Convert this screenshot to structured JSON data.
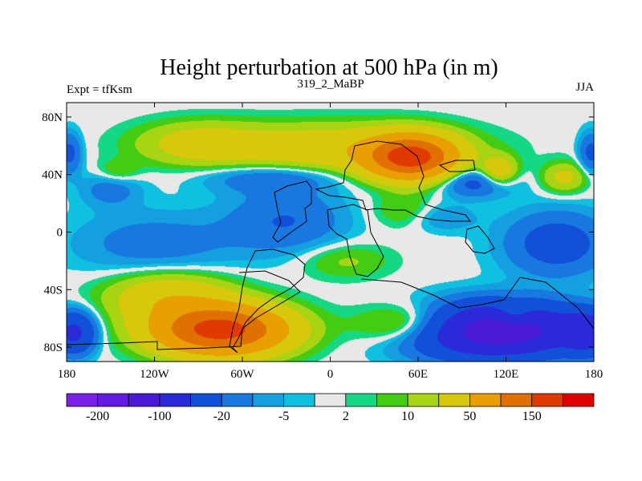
{
  "chart_data": {
    "type": "heatmap",
    "title": "Height perturbation at 500 hPa (in m)",
    "subtitle_left": "Expt = tfKsm",
    "subtitle_center": "319_2_MaBP",
    "subtitle_right": "JJA",
    "xlim": [
      -180,
      180
    ],
    "ylim": [
      -90,
      90
    ],
    "x_ticks": [
      {
        "value": -180,
        "label": "180"
      },
      {
        "value": -120,
        "label": "120W"
      },
      {
        "value": -60,
        "label": "60W"
      },
      {
        "value": 0,
        "label": "0"
      },
      {
        "value": 60,
        "label": "60E"
      },
      {
        "value": 120,
        "label": "120E"
      },
      {
        "value": 180,
        "label": "180"
      }
    ],
    "y_ticks": [
      {
        "value": 80,
        "label": "80N"
      },
      {
        "value": 40,
        "label": "40N"
      },
      {
        "value": 0,
        "label": "0"
      },
      {
        "value": -40,
        "label": "40S"
      },
      {
        "value": -80,
        "label": "80S"
      }
    ],
    "colorbar": {
      "colors": [
        "#7a1fe6",
        "#6419e0",
        "#4a1ad6",
        "#2a2ad8",
        "#1250d8",
        "#1878e0",
        "#14a0e0",
        "#10c0e0",
        "#e8e8e8",
        "#14d884",
        "#44cc14",
        "#a8d414",
        "#d8c80c",
        "#e8a000",
        "#e07000",
        "#e03a00",
        "#e00000"
      ],
      "tick_labels": [
        {
          "boundary": 1,
          "label": "-200"
        },
        {
          "boundary": 3,
          "label": "-100"
        },
        {
          "boundary": 5,
          "label": "-20"
        },
        {
          "boundary": 7,
          "label": "-5"
        },
        {
          "boundary": 9,
          "label": "2"
        },
        {
          "boundary": 11,
          "label": "10"
        },
        {
          "boundary": 13,
          "label": "50"
        },
        {
          "boundary": 15,
          "label": "150"
        }
      ]
    },
    "centers": [
      {
        "lon": 55,
        "lat": 52,
        "amp": 170,
        "slon": 28,
        "slat": 14
      },
      {
        "lon": 0,
        "lat": 58,
        "amp": 38,
        "slon": 80,
        "slat": 16
      },
      {
        "lon": -90,
        "lat": 62,
        "amp": 25,
        "slon": 40,
        "slat": 14
      },
      {
        "lon": -75,
        "lat": -68,
        "amp": 175,
        "slon": 42,
        "slat": 16
      },
      {
        "lon": -110,
        "lat": -45,
        "amp": 40,
        "slon": 40,
        "slat": 16
      },
      {
        "lon": 65,
        "lat": -65,
        "amp": 55,
        "slon": 40,
        "slat": 14
      },
      {
        "lon": 125,
        "lat": -58,
        "amp": 40,
        "slon": 13,
        "slat": 8
      },
      {
        "lon": 110,
        "lat": -68,
        "amp": -150,
        "slon": 55,
        "slat": 17
      },
      {
        "lon": -175,
        "lat": -70,
        "amp": -60,
        "slon": 14,
        "slat": 14
      },
      {
        "lon": 175,
        "lat": -70,
        "amp": -60,
        "slon": 14,
        "slat": 14
      },
      {
        "lon": -40,
        "lat": 38,
        "amp": -20,
        "slon": 45,
        "slat": 10
      },
      {
        "lon": -150,
        "lat": 30,
        "amp": -15,
        "slon": 20,
        "slat": 12
      },
      {
        "lon": -30,
        "lat": 8,
        "amp": -20,
        "slon": 40,
        "slat": 22
      },
      {
        "lon": -120,
        "lat": -8,
        "amp": -15,
        "slon": 55,
        "slat": 22
      },
      {
        "lon": 155,
        "lat": -8,
        "amp": -30,
        "slon": 35,
        "slat": 22
      },
      {
        "lon": 100,
        "lat": 35,
        "amp": -30,
        "slon": 25,
        "slat": 10
      },
      {
        "lon": 75,
        "lat": 10,
        "amp": -10,
        "slon": 25,
        "slat": 10
      },
      {
        "lon": 10,
        "lat": -20,
        "amp": 12,
        "slon": 30,
        "slat": 12
      },
      {
        "lon": 115,
        "lat": 42,
        "amp": 40,
        "slon": 12,
        "slat": 10
      },
      {
        "lon": 160,
        "lat": 38,
        "amp": 25,
        "slon": 15,
        "slat": 10
      },
      {
        "lon": -145,
        "lat": 42,
        "amp": 12,
        "slon": 14,
        "slat": 8
      },
      {
        "lon": 50,
        "lat": 15,
        "amp": 12,
        "slon": 20,
        "slat": 12
      },
      {
        "lon": -178,
        "lat": 55,
        "amp": -25,
        "slon": 8,
        "slat": 14
      },
      {
        "lon": 178,
        "lat": 55,
        "amp": -25,
        "slon": 8,
        "slat": 14
      }
    ]
  }
}
